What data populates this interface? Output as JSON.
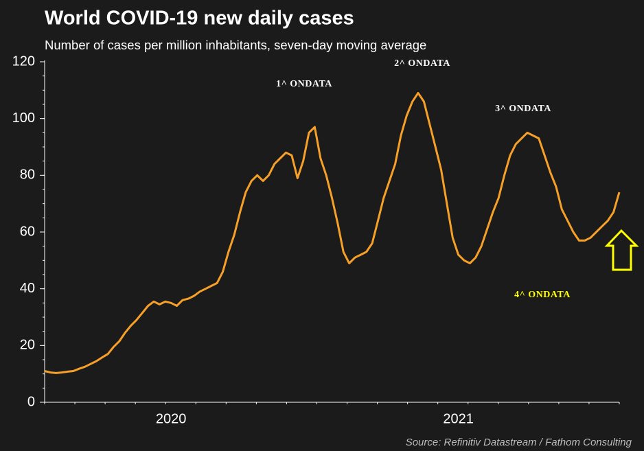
{
  "chart_data": {
    "type": "line",
    "title": "World COVID-19 new daily cases",
    "subtitle": "Number of cases per million inhabitants, seven-day moving average",
    "source": "Source: Refinitiv Datastream / Fathom Consulting",
    "annotations": [
      "1^ ONDATA",
      "2^ ONDATA",
      "3^ ONDATA",
      "4^ ONDATA"
    ],
    "categories": [
      null,
      null,
      null,
      null,
      null,
      null,
      null,
      null,
      null,
      null,
      null,
      null,
      null,
      null,
      null,
      null,
      null,
      null,
      null,
      null,
      null,
      null,
      "2020",
      null,
      null,
      null,
      null,
      null,
      null,
      null,
      null,
      null,
      null,
      null,
      null,
      null,
      null,
      null,
      null,
      null,
      null,
      null,
      null,
      null,
      null,
      null,
      null,
      null,
      null,
      null,
      null,
      null,
      null,
      null,
      null,
      null,
      null,
      null,
      null,
      null,
      null,
      null,
      null,
      null,
      null,
      null,
      null,
      null,
      null,
      null,
      null,
      null,
      "2021",
      null,
      null,
      null,
      null,
      null,
      null,
      null,
      null,
      null,
      null,
      null,
      null,
      null,
      null,
      null,
      null,
      null,
      null,
      null,
      null,
      null,
      null,
      null,
      null,
      null,
      null,
      null,
      null
    ],
    "series": [
      {
        "color": "#f7a028",
        "values": [
          11,
          10.5,
          10.3,
          10.5,
          10.8,
          11,
          11.8,
          12.5,
          13.5,
          14.5,
          15.8,
          17,
          19.5,
          21.5,
          24.5,
          27,
          29,
          31.5,
          34,
          35.5,
          34.5,
          35.5,
          35,
          34,
          36,
          36.5,
          37.5,
          39,
          40,
          41,
          42,
          46,
          53,
          59,
          67,
          74,
          78,
          80,
          78,
          80,
          84,
          86,
          88,
          87,
          79,
          85,
          95,
          97,
          86,
          80,
          72,
          63,
          53,
          49,
          51,
          52,
          53,
          56,
          64,
          72,
          78,
          84,
          94,
          101,
          106,
          109,
          106,
          98,
          90,
          82,
          70,
          58,
          52,
          50,
          49,
          51,
          55,
          61,
          67,
          72,
          80,
          87,
          91,
          93,
          95,
          94,
          93,
          87,
          81,
          76,
          68,
          64,
          60,
          57,
          57,
          58,
          60,
          62,
          64,
          67,
          74
        ]
      }
    ],
    "ylim": [
      0,
      120
    ],
    "yticks": [
      0,
      20,
      40,
      60,
      80,
      100,
      120
    ]
  }
}
